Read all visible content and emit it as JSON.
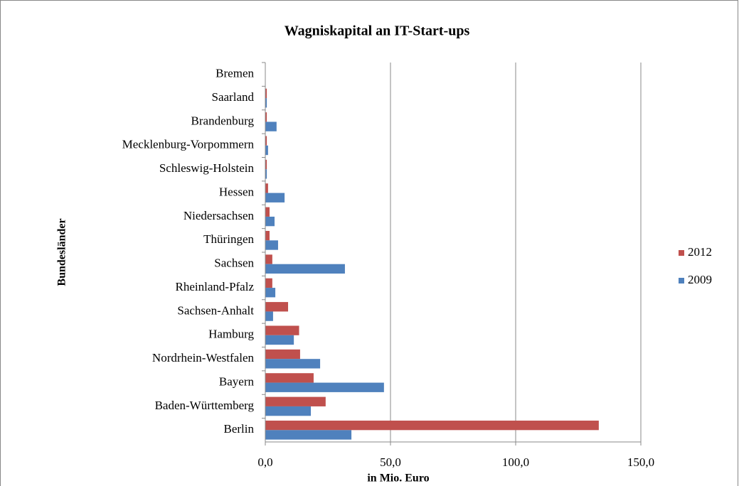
{
  "chart_data": {
    "type": "hbar",
    "title": "Wagniskapital  an IT-Start-ups",
    "x_label": "in Mio.  Euro",
    "y_label": "Bundesländer",
    "categories": [
      "Bremen",
      "Saarland",
      "Brandenburg",
      "Mecklenburg-Vorpommern",
      "Schleswig-Holstein",
      "Hessen",
      "Niedersachsen",
      "Thüringen",
      "Sachsen",
      "Rheinland-Pfalz",
      "Sachsen-Anhalt",
      "Hamburg",
      "Nordrhein-Westfalen",
      "Bayern",
      "Baden-Württemberg",
      "Berlin"
    ],
    "series": [
      {
        "name": "2012",
        "color": "#c0504d",
        "values": [
          0,
          0.6,
          0.6,
          0.6,
          0.6,
          1.1,
          1.7,
          1.7,
          2.8,
          2.8,
          9.1,
          13.5,
          13.9,
          19.3,
          24.1,
          133.2
        ]
      },
      {
        "name": "2009",
        "color": "#4f81bd",
        "values": [
          0,
          0.6,
          4.5,
          1.1,
          0.6,
          7.7,
          3.7,
          5.1,
          31.8,
          4.0,
          3.1,
          11.4,
          21.9,
          47.4,
          18.2,
          34.4
        ]
      }
    ],
    "xlim": [
      0,
      150
    ],
    "xticks": [
      {
        "value": 0,
        "label": "0,0"
      },
      {
        "value": 50,
        "label": "50,0"
      },
      {
        "value": 100,
        "label": "100,0"
      },
      {
        "value": 150,
        "label": "150,0"
      }
    ],
    "grid": true,
    "legend": "right"
  }
}
